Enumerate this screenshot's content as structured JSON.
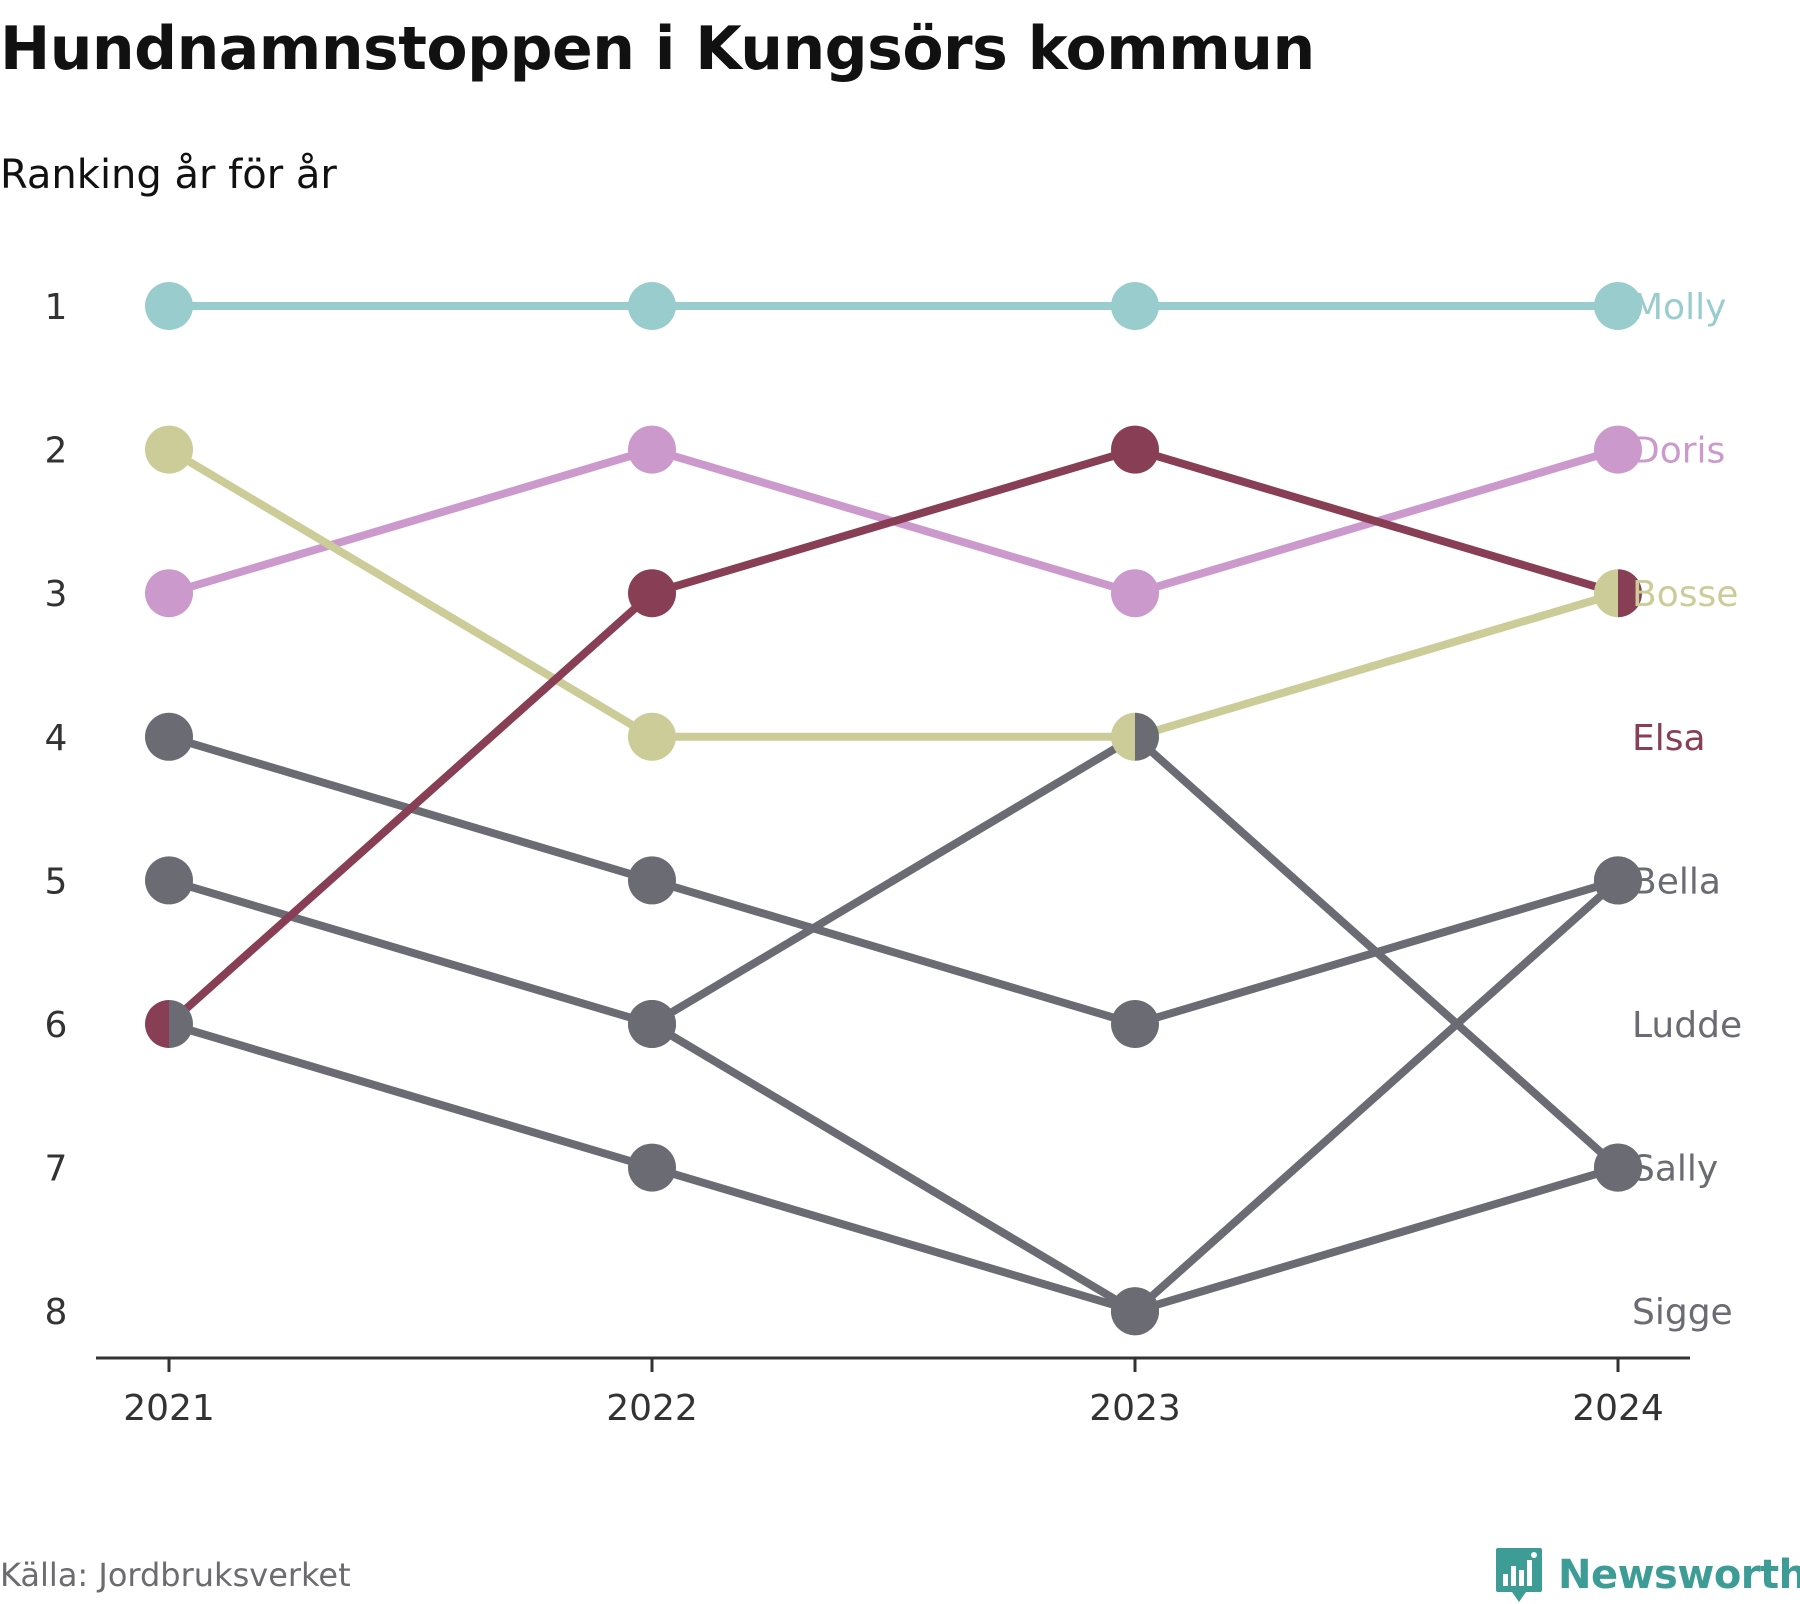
{
  "title": "Hundnamnstoppen i Kungsörs kommun",
  "subtitle": "Ranking år för år",
  "source": "Källa: Jordbruksverket",
  "brand": "Newsworthy",
  "colors": {
    "highlight_molly": "#99cccc",
    "highlight_doris": "#cc99cc",
    "highlight_bosse": "#cccc99",
    "highlight_elsa": "#883f55",
    "other": "#6b6b73",
    "axis": "#333333",
    "brand": "#3d9c95"
  },
  "chart_data": {
    "type": "line",
    "subtype": "bump",
    "x": [
      "2021",
      "2022",
      "2023",
      "2024"
    ],
    "y_ticks": [
      "1",
      "2",
      "3",
      "4",
      "5",
      "6",
      "7",
      "8"
    ],
    "y_reversed": true,
    "ylim": [
      1,
      8
    ],
    "legend": "end-labels",
    "grid": false,
    "series": [
      {
        "name": "Molly",
        "color": "#99cccc",
        "values": [
          1,
          1,
          1,
          1
        ]
      },
      {
        "name": "Doris",
        "color": "#cc99cc",
        "values": [
          3,
          2,
          3,
          2
        ]
      },
      {
        "name": "Bosse",
        "color": "#cccc99",
        "values": [
          2,
          4,
          4,
          3
        ]
      },
      {
        "name": "Elsa",
        "color": "#883f55",
        "values": [
          6,
          3,
          2,
          3
        ]
      },
      {
        "name": "Bella",
        "color": "#6b6b73",
        "values": [
          5,
          6,
          8,
          5
        ]
      },
      {
        "name": "Ludde",
        "color": "#6b6b73",
        "values": [
          4,
          5,
          6,
          5
        ]
      },
      {
        "name": "Sally",
        "color": "#6b6b73",
        "values": [
          6,
          7,
          8,
          7
        ]
      },
      {
        "name": "Sigge",
        "color": "#6b6b73",
        "values": [
          null,
          6,
          4,
          7
        ]
      }
    ],
    "end_labels": [
      {
        "name": "Molly",
        "color": "#99cccc",
        "rank": 1
      },
      {
        "name": "Doris",
        "color": "#cc99cc",
        "rank": 2
      },
      {
        "name": "Bosse",
        "color": "#cccc99",
        "rank": 3
      },
      {
        "name": "Elsa",
        "color": "#883f55",
        "rank": 4
      },
      {
        "name": "Bella",
        "color": "#6b6b73",
        "rank": 5
      },
      {
        "name": "Ludde",
        "color": "#6b6b73",
        "rank": 6
      },
      {
        "name": "Sally",
        "color": "#6b6b73",
        "rank": 7
      },
      {
        "name": "Sigge",
        "color": "#6b6b73",
        "rank": 8
      }
    ]
  }
}
